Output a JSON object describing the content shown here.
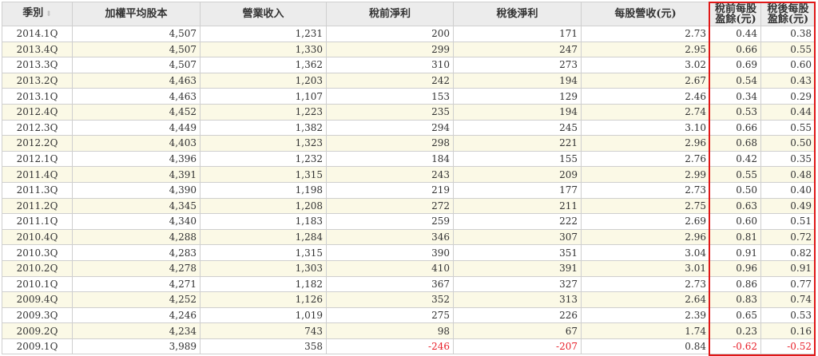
{
  "table": {
    "headers": [
      "季別",
      "加權平均股本",
      "營業收入",
      "稅前淨利",
      "稅後淨利",
      "每股營收(元)",
      "稅前每股盈餘(元)",
      "稅後每股盈餘(元)"
    ],
    "sort_icon": "sort-arrows-icon",
    "highlight_color": "#e01818",
    "negative_color": "#e8202a",
    "rows": [
      [
        "2014.1Q",
        "4,507",
        "1,231",
        "200",
        "171",
        "2.73",
        "0.44",
        "0.38"
      ],
      [
        "2013.4Q",
        "4,507",
        "1,330",
        "299",
        "247",
        "2.95",
        "0.66",
        "0.55"
      ],
      [
        "2013.3Q",
        "4,507",
        "1,362",
        "310",
        "273",
        "3.02",
        "0.69",
        "0.60"
      ],
      [
        "2013.2Q",
        "4,463",
        "1,203",
        "242",
        "194",
        "2.67",
        "0.54",
        "0.43"
      ],
      [
        "2013.1Q",
        "4,463",
        "1,107",
        "153",
        "129",
        "2.46",
        "0.34",
        "0.29"
      ],
      [
        "2012.4Q",
        "4,452",
        "1,223",
        "235",
        "194",
        "2.74",
        "0.53",
        "0.44"
      ],
      [
        "2012.3Q",
        "4,449",
        "1,382",
        "294",
        "245",
        "3.10",
        "0.66",
        "0.55"
      ],
      [
        "2012.2Q",
        "4,403",
        "1,323",
        "298",
        "221",
        "2.96",
        "0.68",
        "0.50"
      ],
      [
        "2012.1Q",
        "4,396",
        "1,232",
        "184",
        "155",
        "2.76",
        "0.42",
        "0.35"
      ],
      [
        "2011.4Q",
        "4,391",
        "1,315",
        "243",
        "209",
        "2.99",
        "0.55",
        "0.48"
      ],
      [
        "2011.3Q",
        "4,390",
        "1,198",
        "219",
        "177",
        "2.73",
        "0.50",
        "0.40"
      ],
      [
        "2011.2Q",
        "4,345",
        "1,208",
        "272",
        "211",
        "2.75",
        "0.63",
        "0.49"
      ],
      [
        "2011.1Q",
        "4,340",
        "1,183",
        "259",
        "222",
        "2.69",
        "0.60",
        "0.51"
      ],
      [
        "2010.4Q",
        "4,288",
        "1,284",
        "346",
        "307",
        "2.96",
        "0.81",
        "0.72"
      ],
      [
        "2010.3Q",
        "4,283",
        "1,315",
        "390",
        "351",
        "3.04",
        "0.91",
        "0.82"
      ],
      [
        "2010.2Q",
        "4,278",
        "1,303",
        "410",
        "391",
        "3.01",
        "0.96",
        "0.91"
      ],
      [
        "2010.1Q",
        "4,271",
        "1,182",
        "367",
        "327",
        "2.73",
        "0.86",
        "0.77"
      ],
      [
        "2009.4Q",
        "4,252",
        "1,126",
        "352",
        "313",
        "2.64",
        "0.83",
        "0.74"
      ],
      [
        "2009.3Q",
        "4,246",
        "1,019",
        "275",
        "226",
        "2.39",
        "0.65",
        "0.53"
      ],
      [
        "2009.2Q",
        "4,234",
        "743",
        "98",
        "67",
        "1.74",
        "0.23",
        "0.16"
      ],
      [
        "2009.1Q",
        "3,989",
        "358",
        "-246",
        "-207",
        "0.84",
        "-0.62",
        "-0.52"
      ]
    ]
  }
}
